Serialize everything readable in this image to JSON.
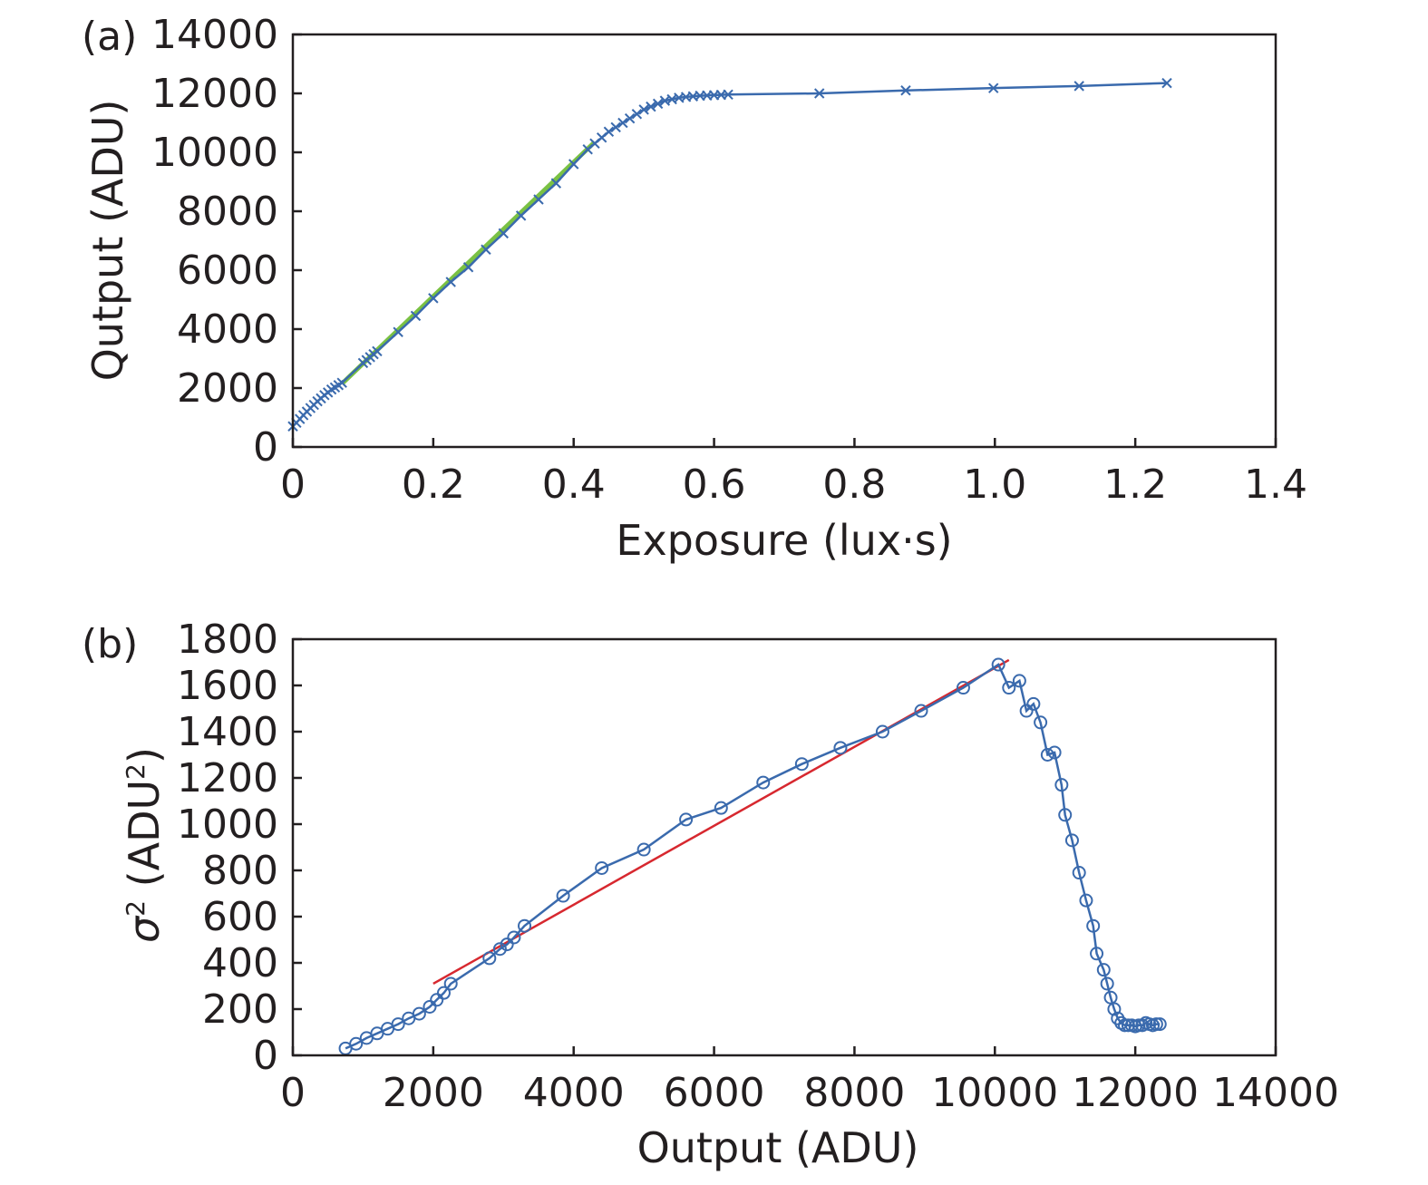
{
  "colors": {
    "data": "#3a6aad",
    "fit_a": "#7ac143",
    "fit_b": "#d7282f",
    "axis": "#231f20"
  },
  "chart_data": [
    {
      "tag": "(a)",
      "type": "line",
      "xlabel": "Exposure (lux·s)",
      "ylabel": "Qutput (ADU)",
      "xlim": [
        0,
        1.4
      ],
      "ylim": [
        0,
        14000
      ],
      "xticks": [
        "0",
        "0.2",
        "0.4",
        "0.6",
        "0.8",
        "1.0",
        "1.2",
        "1.4"
      ],
      "yticks": [
        "0",
        "2000",
        "4000",
        "6000",
        "8000",
        "10000",
        "12000",
        "14000"
      ],
      "grid": false,
      "series": [
        {
          "marker": "x",
          "x": [
            0.0,
            0.005,
            0.01,
            0.015,
            0.02,
            0.025,
            0.03,
            0.035,
            0.04,
            0.045,
            0.05,
            0.055,
            0.06,
            0.065,
            0.07,
            0.1,
            0.105,
            0.11,
            0.115,
            0.12,
            0.15,
            0.175,
            0.2,
            0.225,
            0.25,
            0.275,
            0.3,
            0.325,
            0.35,
            0.375,
            0.4,
            0.42,
            0.43,
            0.44,
            0.45,
            0.46,
            0.47,
            0.48,
            0.49,
            0.5,
            0.51,
            0.52,
            0.53,
            0.54,
            0.55,
            0.56,
            0.57,
            0.58,
            0.59,
            0.6,
            0.61,
            0.62,
            0.75,
            0.873,
            0.998,
            1.12,
            1.245
          ],
          "y": [
            700,
            820,
            950,
            1080,
            1200,
            1320,
            1430,
            1550,
            1650,
            1760,
            1850,
            1950,
            2020,
            2100,
            2180,
            2850,
            2950,
            3050,
            3150,
            3250,
            3900,
            4450,
            5050,
            5600,
            6100,
            6700,
            7250,
            7850,
            8400,
            8950,
            9600,
            10100,
            10300,
            10500,
            10700,
            10850,
            11000,
            11150,
            11300,
            11450,
            11550,
            11650,
            11750,
            11800,
            11850,
            11880,
            11900,
            11920,
            11930,
            11940,
            11950,
            11960,
            12000,
            12100,
            12180,
            12250,
            12350
          ]
        }
      ],
      "fit": {
        "x": [
          0.07,
          0.43
        ],
        "y": [
          2150,
          10350
        ]
      }
    },
    {
      "tag": "(b)",
      "type": "line",
      "xlabel": "Output (ADU)",
      "ylabel": "σ² (ADU²)",
      "ylabel_parts": {
        "main": "σ",
        "main_sup": "2",
        "unit": " (ADU",
        "unit_sup": "2",
        "close": ")"
      },
      "xlim": [
        0,
        14000
      ],
      "ylim": [
        0,
        1800
      ],
      "xticks": [
        "0",
        "2000",
        "4000",
        "6000",
        "8000",
        "10000",
        "12000",
        "14000"
      ],
      "yticks": [
        "0",
        "200",
        "400",
        "600",
        "800",
        "1000",
        "1200",
        "1400",
        "1600",
        "1800"
      ],
      "grid": false,
      "series": [
        {
          "marker": "o",
          "x": [
            750,
            900,
            1050,
            1200,
            1350,
            1500,
            1650,
            1800,
            1950,
            2050,
            2150,
            2250,
            2800,
            2950,
            3050,
            3150,
            3300,
            3850,
            4400,
            5000,
            5600,
            6100,
            6700,
            7250,
            7800,
            8400,
            8950,
            9550,
            10050,
            10200,
            10350,
            10450,
            10550,
            10650,
            10750,
            10850,
            10950,
            11000,
            11100,
            11200,
            11300,
            11400,
            11450,
            11550,
            11600,
            11650,
            11700,
            11750,
            11800,
            11850,
            11900,
            11950,
            12000,
            12050,
            12100,
            12150,
            12200,
            12250,
            12300,
            12350
          ],
          "y": [
            30,
            50,
            75,
            95,
            115,
            135,
            160,
            180,
            210,
            240,
            270,
            310,
            420,
            460,
            480,
            510,
            560,
            690,
            810,
            890,
            1020,
            1070,
            1180,
            1260,
            1330,
            1400,
            1490,
            1590,
            1690,
            1590,
            1620,
            1490,
            1520,
            1440,
            1300,
            1310,
            1170,
            1040,
            930,
            790,
            670,
            560,
            440,
            370,
            310,
            250,
            200,
            160,
            140,
            130,
            130,
            130,
            125,
            130,
            130,
            140,
            135,
            130,
            135,
            135
          ]
        }
      ],
      "fit": {
        "x": [
          2000,
          10200
        ],
        "y": [
          310,
          1710
        ]
      }
    }
  ]
}
